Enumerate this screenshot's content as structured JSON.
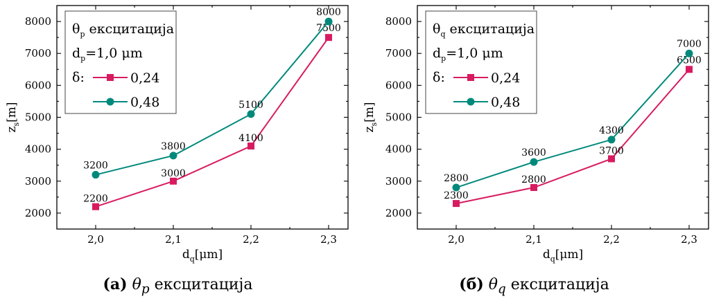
{
  "colors": {
    "series_1": "#d81b60",
    "series_2": "#00897b"
  },
  "figures": [
    {
      "caption_tag": "(a)",
      "caption_symbol": "θ",
      "caption_sub": "p",
      "caption_text": "ексцитација",
      "legend": {
        "title_symbol": "θ",
        "title_sub": "p",
        "title_text": "ексцитација",
        "param_main": "d",
        "param_sub": "p",
        "param_value": "=1,0 μm",
        "delta_label": "δ:"
      }
    },
    {
      "caption_tag": "(б)",
      "caption_symbol": "θ",
      "caption_sub": "q",
      "caption_text": "ексцитација",
      "legend": {
        "title_symbol": "θ",
        "title_sub": "q",
        "title_text": "ексцитација",
        "param_main": "d",
        "param_sub": "p",
        "param_value": "=1,0 μm",
        "delta_label": "δ:"
      }
    }
  ],
  "chart_data": [
    {
      "type": "line",
      "x": [
        2.0,
        2.1,
        2.2,
        2.3
      ],
      "x_tick_labels": [
        "2,0",
        "2,1",
        "2,2",
        "2,3"
      ],
      "xlabel_main": "d",
      "xlabel_sub": "q",
      "xlabel_unit": "[μm]",
      "ylabel_main": "z",
      "ylabel_sub": "s",
      "ylabel_unit": "[m]",
      "ylim": [
        1500,
        8500
      ],
      "y_ticks": [
        2000,
        3000,
        4000,
        5000,
        6000,
        7000,
        8000
      ],
      "grid": false,
      "legend_position": "top-left",
      "series": [
        {
          "name": "0,24",
          "marker": "square",
          "values": [
            2200,
            3000,
            4100,
            7500
          ],
          "value_labels": [
            "2200",
            "3000",
            "4100",
            "7500"
          ]
        },
        {
          "name": "0,48",
          "marker": "circle",
          "values": [
            3200,
            3800,
            5100,
            8000
          ],
          "value_labels": [
            "3200",
            "3800",
            "5100",
            "8000"
          ]
        }
      ]
    },
    {
      "type": "line",
      "x": [
        2.0,
        2.1,
        2.2,
        2.3
      ],
      "x_tick_labels": [
        "2,0",
        "2,1",
        "2,2",
        "2,3"
      ],
      "xlabel_main": "d",
      "xlabel_sub": "q",
      "xlabel_unit": "[μm]",
      "ylabel_main": "z",
      "ylabel_sub": "s",
      "ylabel_unit": "[m]",
      "ylim": [
        1500,
        8500
      ],
      "y_ticks": [
        2000,
        3000,
        4000,
        5000,
        6000,
        7000,
        8000
      ],
      "grid": false,
      "legend_position": "top-left",
      "series": [
        {
          "name": "0,24",
          "marker": "square",
          "values": [
            2300,
            2800,
            3700,
            6500
          ],
          "value_labels": [
            "2300",
            "2800",
            "3700",
            "6500"
          ]
        },
        {
          "name": "0,48",
          "marker": "circle",
          "values": [
            2800,
            3600,
            4300,
            7000
          ],
          "value_labels": [
            "2800",
            "3600",
            "4300",
            "7000"
          ]
        }
      ]
    }
  ]
}
